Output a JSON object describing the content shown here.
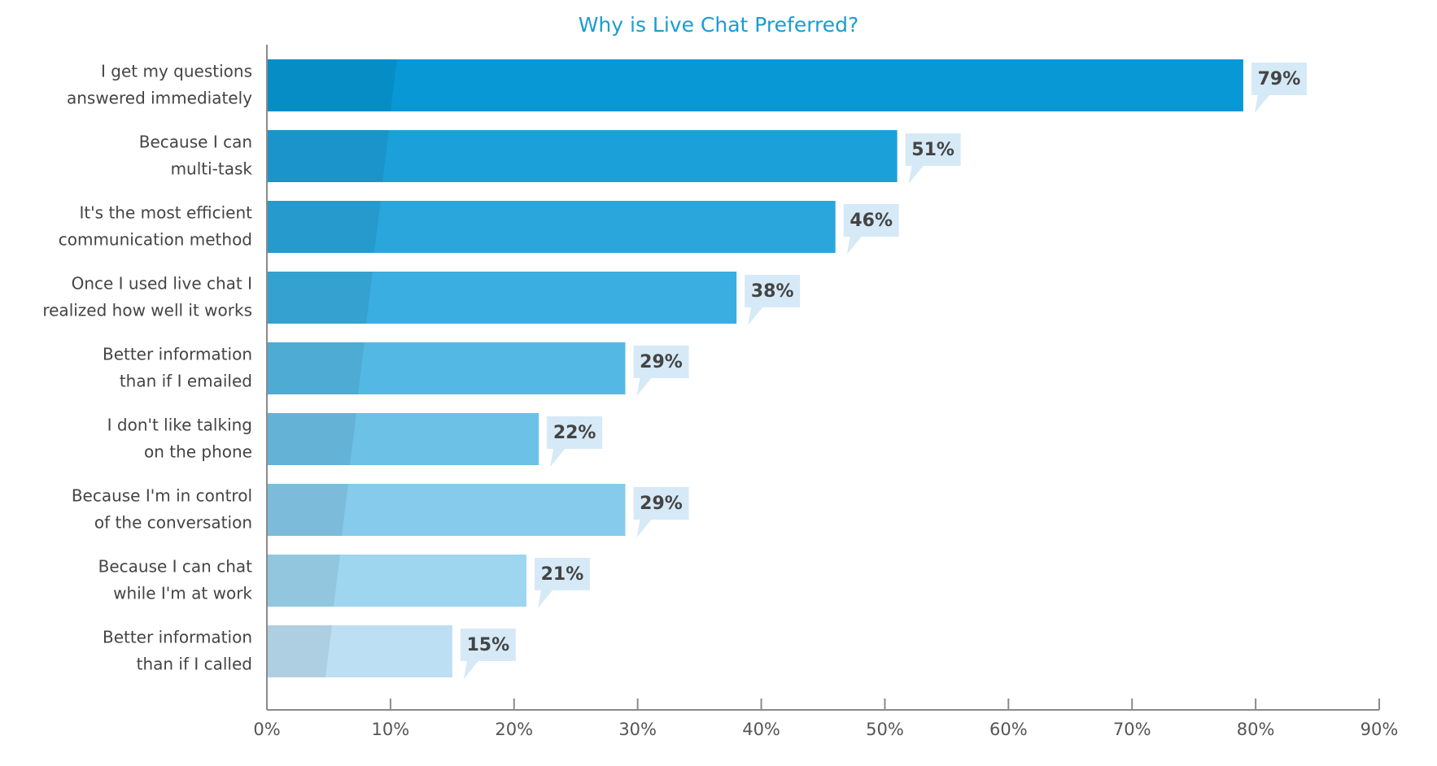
{
  "chart_data": {
    "type": "bar",
    "orientation": "horizontal",
    "title": "Why is Live Chat Preferred?",
    "categories": [
      [
        "I get my questions",
        "answered immediately"
      ],
      [
        "Because I can",
        "multi-task"
      ],
      [
        "It's the most efficient",
        "communication method"
      ],
      [
        "Once I used live chat I",
        "realized how well it works"
      ],
      [
        "Better information",
        "than if I emailed"
      ],
      [
        "I don't like talking",
        "on the phone"
      ],
      [
        "Because I'm in control",
        "of the conversation"
      ],
      [
        "Because I can chat",
        "while I'm at work"
      ],
      [
        "Better information",
        "than if I called"
      ]
    ],
    "values": [
      79,
      51,
      46,
      38,
      29,
      22,
      29,
      21,
      15
    ],
    "value_labels": [
      "79%",
      "51%",
      "46%",
      "38%",
      "29%",
      "22%",
      "29%",
      "21%",
      "15%"
    ],
    "colors": [
      "#0898d6",
      "#1ca0da",
      "#2aa6dd",
      "#3aaee0",
      "#54b8e4",
      "#6cc1e7",
      "#86cbeb",
      "#9ed5ef",
      "#bcdff3"
    ],
    "xlim": [
      0,
      90
    ],
    "xticks": [
      {
        "value": 0,
        "label": "0%"
      },
      {
        "value": 10,
        "label": "10%"
      },
      {
        "value": 20,
        "label": "20%"
      },
      {
        "value": 30,
        "label": "30%"
      },
      {
        "value": 40,
        "label": "40%"
      },
      {
        "value": 50,
        "label": "50%"
      },
      {
        "value": 60,
        "label": "60%"
      },
      {
        "value": 70,
        "label": "70%"
      },
      {
        "value": 80,
        "label": "80%"
      },
      {
        "value": 90,
        "label": "90%"
      }
    ]
  }
}
